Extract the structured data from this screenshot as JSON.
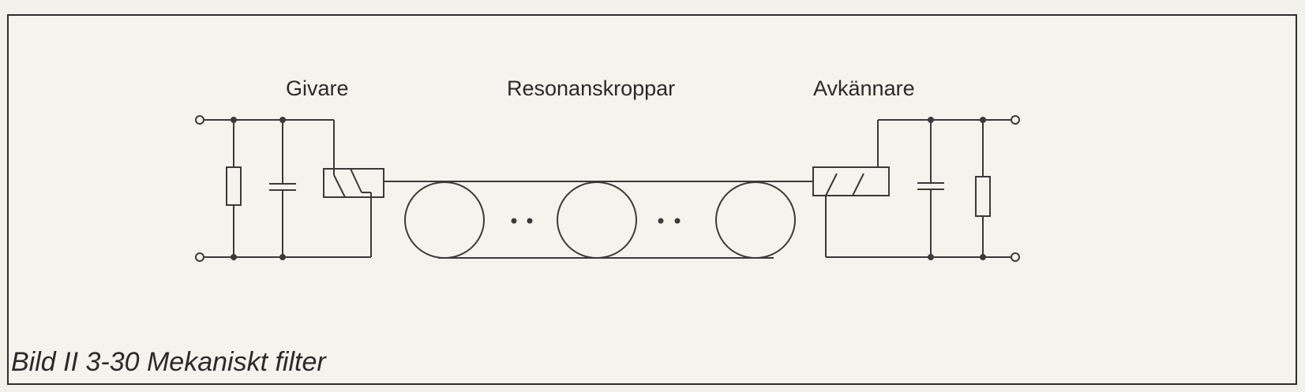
{
  "labels": {
    "transducer": "Givare",
    "resonators": "Resonanskroppar",
    "sensor": "Avkännare"
  },
  "caption": "Bild II 3-30  Mekaniskt filter",
  "colors": {
    "ink": "#3a3a3a",
    "paper": "#f4f3ee",
    "border": "#2d2d2d"
  }
}
